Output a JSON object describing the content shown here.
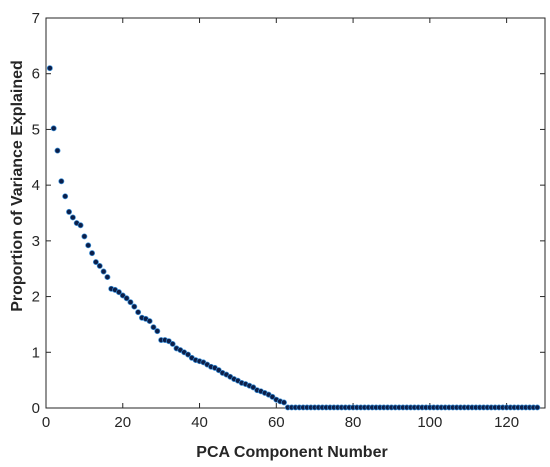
{
  "chart_data": {
    "type": "scatter",
    "title": "",
    "xlabel": "PCA Component Number",
    "ylabel": "Proportion of Variance Explained",
    "xlim": [
      0,
      130
    ],
    "ylim": [
      0,
      7
    ],
    "xticks": [
      0,
      20,
      40,
      60,
      80,
      100,
      120
    ],
    "yticks": [
      0,
      1,
      2,
      3,
      4,
      5,
      6,
      7
    ],
    "grid": false,
    "legend": "none",
    "marker_color": "#0b1f4a",
    "marker_edge_color": "#3b8fd8",
    "series": [
      {
        "x": [
          1,
          2,
          3,
          4,
          5,
          6,
          7,
          8,
          9,
          10,
          11,
          12,
          13,
          14,
          15,
          16,
          17,
          18,
          19,
          20,
          21,
          22,
          23,
          24,
          25,
          26,
          27,
          28,
          29,
          30,
          31,
          32,
          33,
          34,
          35,
          36,
          37,
          38,
          39,
          40,
          41,
          42,
          43,
          44,
          45,
          46,
          47,
          48,
          49,
          50,
          51,
          52,
          53,
          54,
          55,
          56,
          57,
          58,
          59,
          60,
          61,
          62,
          63,
          64,
          65,
          66,
          67,
          68,
          69,
          70,
          71,
          72,
          73,
          74,
          75,
          76,
          77,
          78,
          79,
          80,
          81,
          82,
          83,
          84,
          85,
          86,
          87,
          88,
          89,
          90,
          91,
          92,
          93,
          94,
          95,
          96,
          97,
          98,
          99,
          100,
          101,
          102,
          103,
          104,
          105,
          106,
          107,
          108,
          109,
          110,
          111,
          112,
          113,
          114,
          115,
          116,
          117,
          118,
          119,
          120,
          121,
          122,
          123,
          124,
          125,
          126,
          127,
          128
        ],
        "y": [
          6.1,
          5.02,
          4.62,
          4.07,
          3.8,
          3.52,
          3.42,
          3.32,
          3.28,
          3.08,
          2.92,
          2.78,
          2.62,
          2.55,
          2.45,
          2.35,
          2.14,
          2.12,
          2.08,
          2.02,
          1.97,
          1.9,
          1.82,
          1.72,
          1.62,
          1.6,
          1.56,
          1.45,
          1.38,
          1.22,
          1.22,
          1.2,
          1.15,
          1.07,
          1.04,
          1.0,
          0.96,
          0.9,
          0.86,
          0.84,
          0.82,
          0.78,
          0.74,
          0.72,
          0.68,
          0.63,
          0.6,
          0.56,
          0.52,
          0.49,
          0.45,
          0.43,
          0.4,
          0.37,
          0.32,
          0.3,
          0.27,
          0.24,
          0.2,
          0.15,
          0.12,
          0.1,
          0.01,
          0.01,
          0.01,
          0.01,
          0.01,
          0.01,
          0.01,
          0.01,
          0.01,
          0.01,
          0.01,
          0.01,
          0.01,
          0.01,
          0.01,
          0.01,
          0.01,
          0.01,
          0.01,
          0.01,
          0.01,
          0.01,
          0.01,
          0.01,
          0.01,
          0.01,
          0.01,
          0.01,
          0.01,
          0.01,
          0.01,
          0.01,
          0.01,
          0.01,
          0.01,
          0.01,
          0.01,
          0.01,
          0.01,
          0.01,
          0.01,
          0.01,
          0.01,
          0.01,
          0.01,
          0.01,
          0.01,
          0.01,
          0.01,
          0.01,
          0.01,
          0.01,
          0.01,
          0.01,
          0.01,
          0.01,
          0.01,
          0.01,
          0.01,
          0.01,
          0.01,
          0.01,
          0.01,
          0.01,
          0.01,
          0.01
        ]
      }
    ]
  }
}
